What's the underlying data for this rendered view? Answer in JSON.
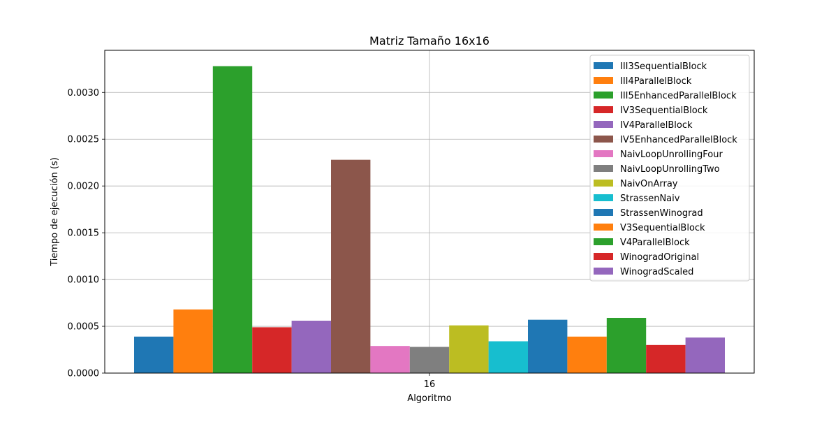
{
  "chart_data": {
    "type": "bar",
    "title": "Matriz Tamaño 16x16",
    "xlabel": "Algoritmo",
    "ylabel": "Tiempo de ejecución (s)",
    "categories": [
      "16"
    ],
    "ylim": [
      0,
      0.00345
    ],
    "yticks": [
      0.0,
      0.0005,
      0.001,
      0.0015,
      0.002,
      0.0025,
      0.003
    ],
    "ytick_labels": [
      "0.0000",
      "0.0005",
      "0.0010",
      "0.0015",
      "0.0020",
      "0.0025",
      "0.0030"
    ],
    "grid": true,
    "legend_position": "top-right",
    "series": [
      {
        "name": "III3SequentialBlock",
        "values": [
          0.00039
        ],
        "color": "#1f77b4"
      },
      {
        "name": "III4ParallelBlock",
        "values": [
          0.00068
        ],
        "color": "#ff7f0e"
      },
      {
        "name": "III5EnhancedParallelBlock",
        "values": [
          0.00328
        ],
        "color": "#2ca02c"
      },
      {
        "name": "IV3SequentialBlock",
        "values": [
          0.00049
        ],
        "color": "#d62728"
      },
      {
        "name": "IV4ParallelBlock",
        "values": [
          0.00056
        ],
        "color": "#9467bd"
      },
      {
        "name": "IV5EnhancedParallelBlock",
        "values": [
          0.00228
        ],
        "color": "#8c564b"
      },
      {
        "name": "NaivLoopUnrollingFour",
        "values": [
          0.00029
        ],
        "color": "#e377c2"
      },
      {
        "name": "NaivLoopUnrollingTwo",
        "values": [
          0.00028
        ],
        "color": "#7f7f7f"
      },
      {
        "name": "NaivOnArray",
        "values": [
          0.00051
        ],
        "color": "#bcbd22"
      },
      {
        "name": "StrassenNaiv",
        "values": [
          0.00034
        ],
        "color": "#17becf"
      },
      {
        "name": "StrassenWinograd",
        "values": [
          0.00057
        ],
        "color": "#1f77b4"
      },
      {
        "name": "V3SequentialBlock",
        "values": [
          0.00039
        ],
        "color": "#ff7f0e"
      },
      {
        "name": "V4ParallelBlock",
        "values": [
          0.00059
        ],
        "color": "#2ca02c"
      },
      {
        "name": "WinogradOriginal",
        "values": [
          0.0003
        ],
        "color": "#d62728"
      },
      {
        "name": "WinogradScaled",
        "values": [
          0.00038
        ],
        "color": "#9467bd"
      }
    ]
  }
}
